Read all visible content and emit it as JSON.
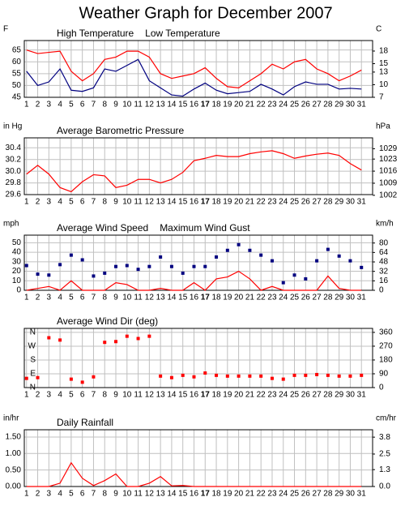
{
  "title": "Weather Graph for December 2007",
  "chart_data": [
    {
      "type": "line",
      "ylabel": "F",
      "y2label": "C",
      "bold_xtick": 17,
      "x": [
        1,
        2,
        3,
        4,
        5,
        6,
        7,
        8,
        9,
        10,
        11,
        12,
        13,
        14,
        15,
        16,
        17,
        18,
        19,
        20,
        21,
        22,
        23,
        24,
        25,
        26,
        27,
        28,
        29,
        30,
        31
      ],
      "xlim": [
        0.8,
        32
      ],
      "xticks": [
        1,
        2,
        3,
        4,
        5,
        6,
        7,
        8,
        9,
        10,
        11,
        12,
        13,
        14,
        15,
        16,
        17,
        18,
        19,
        20,
        21,
        22,
        23,
        24,
        25,
        26,
        27,
        28,
        29,
        30,
        31
      ],
      "ylim": [
        45,
        69
      ],
      "yticks": [
        45,
        50,
        55,
        60,
        65
      ],
      "y2lim": [
        7,
        20.5
      ],
      "y2ticks": [
        7,
        10,
        13,
        15,
        18
      ],
      "series": [
        {
          "name": "High Temperature",
          "color": "#ff0000",
          "mode": "line",
          "values": [
            65,
            63.5,
            64,
            64.5,
            56,
            52,
            55,
            61,
            62,
            64.5,
            64.5,
            62,
            55,
            53,
            54,
            55,
            57.5,
            53,
            49.5,
            49,
            52,
            55,
            59,
            57,
            60,
            61,
            57,
            55,
            52,
            54,
            56.5
          ]
        },
        {
          "name": "Low Temperature",
          "color": "#000080",
          "mode": "line",
          "values": [
            56,
            50,
            51.5,
            57,
            48,
            47.5,
            49,
            57,
            56,
            58.5,
            61,
            52,
            49,
            46,
            45.5,
            48.5,
            51,
            48,
            46.5,
            47,
            47.5,
            50.5,
            48.5,
            46,
            49.5,
            51.5,
            50.5,
            50.5,
            48.5,
            48.8,
            48.5
          ]
        }
      ]
    },
    {
      "type": "line",
      "ylabel": "in Hg",
      "y2label": "hPa",
      "bold_xtick": 17,
      "x": [
        1,
        2,
        3,
        4,
        5,
        6,
        7,
        8,
        9,
        10,
        11,
        12,
        13,
        14,
        15,
        16,
        17,
        18,
        19,
        20,
        21,
        22,
        23,
        24,
        25,
        26,
        27,
        28,
        29,
        30,
        31
      ],
      "xlim": [
        0.8,
        32
      ],
      "xticks": [
        1,
        2,
        3,
        4,
        5,
        6,
        7,
        8,
        9,
        10,
        11,
        12,
        13,
        14,
        15,
        16,
        17,
        18,
        19,
        20,
        21,
        22,
        23,
        24,
        25,
        26,
        27,
        28,
        29,
        30,
        31
      ],
      "ylim": [
        29.6,
        30.57
      ],
      "yticks": [
        29.6,
        29.8,
        {
          "value": 30,
          "label": "30.0"
        },
        30.2,
        30.4
      ],
      "y2lim": [
        1002.4,
        1035.3
      ],
      "y2ticks": [
        1002,
        1009,
        1016,
        1023,
        1029
      ],
      "series": [
        {
          "name": "Average Barometric Pressure",
          "color": "#ff0000",
          "mode": "line",
          "values": [
            29.95,
            30.1,
            29.95,
            29.72,
            29.65,
            29.82,
            29.94,
            29.92,
            29.72,
            29.76,
            29.86,
            29.86,
            29.8,
            29.86,
            29.98,
            30.18,
            30.22,
            30.27,
            30.25,
            30.25,
            30.3,
            30.33,
            30.35,
            30.3,
            30.22,
            30.26,
            30.29,
            30.31,
            30.27,
            30.13,
            30.02
          ]
        }
      ]
    },
    {
      "type": "line",
      "ylabel": "mph",
      "y2label": "km/h",
      "bold_xtick": 17,
      "x": [
        1,
        2,
        3,
        4,
        5,
        6,
        7,
        8,
        9,
        10,
        11,
        12,
        13,
        14,
        15,
        16,
        17,
        18,
        19,
        20,
        21,
        22,
        23,
        24,
        25,
        26,
        27,
        28,
        29,
        30,
        31
      ],
      "xlim": [
        0.8,
        32
      ],
      "xticks": [
        1,
        2,
        3,
        4,
        5,
        6,
        7,
        8,
        9,
        10,
        11,
        12,
        13,
        14,
        15,
        16,
        17,
        18,
        19,
        20,
        21,
        22,
        23,
        24,
        25,
        26,
        27,
        28,
        29,
        30,
        31
      ],
      "ylim": [
        0,
        58
      ],
      "yticks": [
        0,
        10,
        20,
        30,
        40,
        50
      ],
      "y2lim": [
        0,
        93.3
      ],
      "y2ticks": [
        0,
        16,
        32,
        48,
        64,
        80
      ],
      "series": [
        {
          "name": "Average Wind Speed",
          "color": "#ff0000",
          "mode": "line",
          "values": [
            0,
            2,
            4,
            0,
            10,
            0,
            0,
            0,
            8,
            6,
            0,
            0,
            2,
            0,
            0,
            8,
            0,
            12,
            14,
            20,
            12,
            0,
            4,
            0,
            0,
            0,
            0,
            15,
            2,
            0,
            0
          ]
        },
        {
          "name": "Maximum Wind Gust",
          "color": "#000080",
          "mode": "markers",
          "values": [
            26,
            17,
            16,
            27,
            37,
            32,
            15,
            18,
            25,
            26,
            22,
            25,
            35,
            25,
            18,
            25,
            25,
            35,
            42,
            48,
            42,
            37,
            31,
            8,
            16,
            12,
            31,
            43,
            36,
            31,
            24
          ]
        }
      ]
    },
    {
      "type": "line",
      "bold_xtick": 17,
      "ytick_color": "#ff0000",
      "x": [
        1,
        2,
        3,
        4,
        5,
        6,
        7,
        8,
        9,
        10,
        11,
        12,
        13,
        14,
        15,
        16,
        17,
        18,
        19,
        20,
        21,
        22,
        23,
        24,
        25,
        26,
        27,
        28,
        29,
        30,
        31
      ],
      "xlim": [
        0.8,
        32
      ],
      "xticks": [
        1,
        2,
        3,
        4,
        5,
        6,
        7,
        8,
        9,
        10,
        11,
        12,
        13,
        14,
        15,
        16,
        17,
        18,
        19,
        20,
        21,
        22,
        23,
        24,
        25,
        26,
        27,
        28,
        29,
        30,
        31
      ],
      "ylim": [
        0,
        386
      ],
      "yticks": [
        {
          "value": 0,
          "label": "N"
        },
        {
          "value": 90,
          "label": "E"
        },
        {
          "value": 180,
          "label": "S"
        },
        {
          "value": 270,
          "label": "W"
        },
        {
          "value": 360,
          "label": "N"
        }
      ],
      "y2lim": [
        0,
        386
      ],
      "y2ticks": [
        0,
        90,
        180,
        270,
        360
      ],
      "series": [
        {
          "name": "Average Wind Dir (deg)",
          "color": "#ff0000",
          "mode": "markers",
          "values": [
            60,
            65,
            325,
            310,
            55,
            35,
            70,
            295,
            300,
            335,
            320,
            335,
            75,
            65,
            80,
            70,
            95,
            80,
            75,
            75,
            75,
            75,
            60,
            55,
            80,
            80,
            85,
            80,
            75,
            75,
            80
          ]
        }
      ]
    },
    {
      "type": "line",
      "ylabel": "in/hr",
      "y2label": "cm/hr",
      "bold_xtick": 17,
      "x": [
        1,
        2,
        3,
        4,
        5,
        6,
        7,
        8,
        9,
        10,
        11,
        12,
        13,
        14,
        15,
        16,
        17,
        18,
        19,
        20,
        21,
        22,
        23,
        24,
        25,
        26,
        27,
        28,
        29,
        30,
        31
      ],
      "xlim": [
        0.8,
        32
      ],
      "xticks": [
        1,
        2,
        3,
        4,
        5,
        6,
        7,
        8,
        9,
        10,
        11,
        12,
        13,
        14,
        15,
        16,
        17,
        18,
        19,
        20,
        21,
        22,
        23,
        24,
        25,
        26,
        27,
        28,
        29,
        30,
        31
      ],
      "ylim": [
        0,
        1.72
      ],
      "yticks": [
        {
          "value": 0,
          "label": "0.00"
        },
        {
          "value": 0.5,
          "label": "0.50"
        },
        {
          "value": 1,
          "label": "1.00"
        },
        {
          "value": 1.5,
          "label": "1.50"
        }
      ],
      "y2lim": [
        0,
        4.37
      ],
      "y2ticks": [
        {
          "value": 0,
          "label": "0.0"
        },
        1.3,
        2.5,
        3.8
      ],
      "series": [
        {
          "name": "Daily Rainfall",
          "color": "#ff0000",
          "mode": "line",
          "values": [
            0,
            0,
            0,
            0.1,
            0.72,
            0.25,
            0.03,
            0.18,
            0.38,
            0,
            0,
            0.1,
            0.3,
            0.02,
            0.03,
            0,
            0,
            0,
            0,
            0,
            0,
            0,
            0,
            0,
            0,
            0,
            0,
            0,
            0,
            0,
            0
          ]
        }
      ]
    }
  ]
}
